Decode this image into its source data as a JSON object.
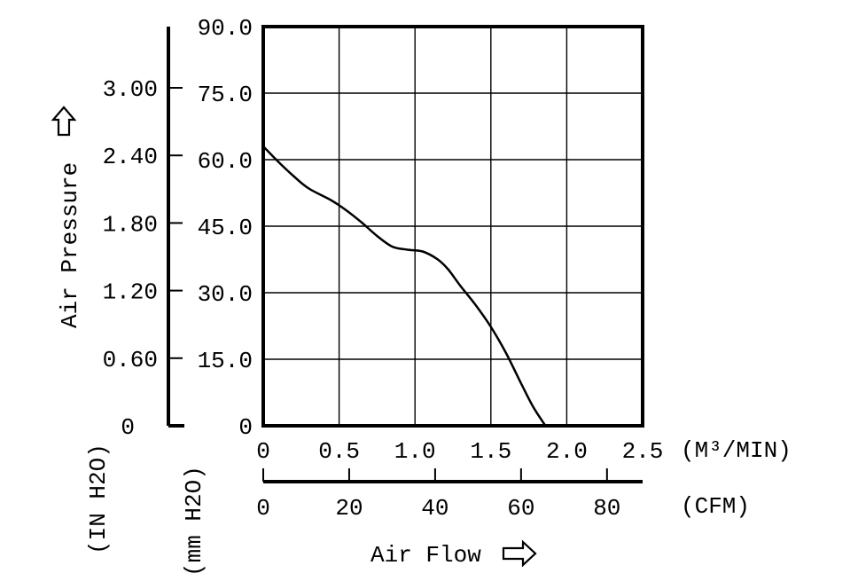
{
  "chart_data": {
    "type": "line",
    "title": "",
    "xlabel": "Air Flow",
    "ylabel": "Air Pressure",
    "x_unit_primary": "(M³/MIN)",
    "x_unit_secondary": "(CFM)",
    "y_unit_primary": "(mm H2O)",
    "y_unit_secondary": "(IN H2O)",
    "xlim": [
      0,
      2.5
    ],
    "ylim": [
      0,
      90
    ],
    "grid": true,
    "x_ticks": [
      "0",
      "0.5",
      "1.0",
      "1.5",
      "2.0",
      "2.5"
    ],
    "x_ticks_cfm": [
      "0",
      "20",
      "40",
      "60",
      "80"
    ],
    "y_ticks_mm": [
      "0",
      "15.0",
      "30.0",
      "45.0",
      "60.0",
      "75.0",
      "90.0"
    ],
    "y_ticks_in": [
      "0",
      "0.60",
      "1.20",
      "1.80",
      "2.40",
      "3.00"
    ],
    "series": [
      {
        "x": [
          0,
          0.1,
          0.2,
          0.3,
          0.45,
          0.55,
          0.65,
          0.75,
          0.85,
          0.95,
          1.05,
          1.15,
          1.22,
          1.3,
          1.4,
          1.5,
          1.6,
          1.7,
          1.78,
          1.86
        ],
        "y": [
          63,
          59.5,
          56.3,
          53.5,
          50.8,
          48.5,
          45.8,
          42.8,
          40.4,
          39.7,
          39.3,
          37.5,
          35.2,
          31.5,
          27.2,
          22.3,
          16.4,
          9.5,
          4.2,
          0
        ]
      }
    ]
  }
}
